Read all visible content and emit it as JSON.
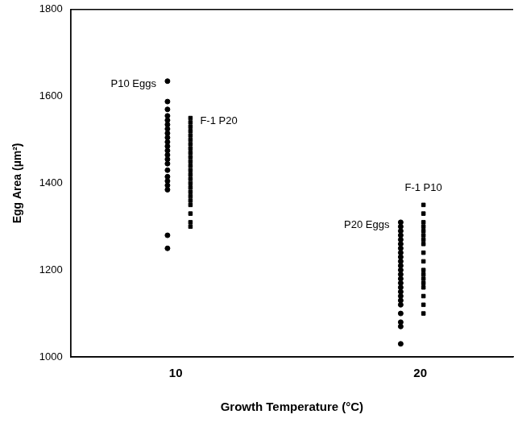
{
  "chart_data": {
    "type": "scatter",
    "x_label": "Growth Temperature (°C)",
    "y_label": "Egg Area (µm²)",
    "xlim": [
      5.7,
      23.8
    ],
    "xticks": [
      10,
      20
    ],
    "ylim": [
      1000,
      1800
    ],
    "yticks": [
      1000,
      1200,
      1400,
      1600,
      1800
    ],
    "grid": false,
    "series": [
      {
        "name": "P10 Eggs",
        "color": "#000000",
        "marker": "circle",
        "x": [
          9.66,
          9.66,
          9.66,
          9.66,
          9.66,
          9.66,
          9.66,
          9.66,
          9.66,
          9.66,
          9.66,
          9.66,
          9.66,
          9.66,
          9.66,
          9.66,
          9.66,
          9.66,
          9.66,
          9.66,
          9.66,
          9.66
        ],
        "values": [
          1635,
          1588,
          1570,
          1555,
          1545,
          1535,
          1525,
          1515,
          1505,
          1495,
          1485,
          1475,
          1465,
          1455,
          1445,
          1430,
          1415,
          1405,
          1395,
          1385,
          1280,
          1250
        ]
      },
      {
        "name": "F-1 P20",
        "color": "#000000",
        "marker": "square",
        "x": [
          10.6,
          10.6,
          10.6,
          10.6,
          10.6,
          10.6,
          10.6,
          10.6,
          10.6,
          10.6,
          10.6,
          10.6,
          10.6,
          10.6,
          10.6,
          10.6,
          10.6,
          10.6,
          10.6,
          10.6,
          10.6,
          10.6,
          10.6,
          10.6
        ],
        "values": [
          1550,
          1540,
          1530,
          1520,
          1510,
          1500,
          1490,
          1480,
          1470,
          1460,
          1450,
          1440,
          1430,
          1420,
          1410,
          1400,
          1390,
          1380,
          1370,
          1360,
          1350,
          1330,
          1310,
          1300
        ]
      },
      {
        "name": "P20 Eggs",
        "color": "#000000",
        "marker": "circle",
        "x": [
          19.2,
          19.2,
          19.2,
          19.2,
          19.2,
          19.2,
          19.2,
          19.2,
          19.2,
          19.2,
          19.2,
          19.2,
          19.2,
          19.2,
          19.2,
          19.2,
          19.2,
          19.2,
          19.2,
          19.2,
          19.2,
          19.2,
          19.2,
          19.2
        ],
        "values": [
          1310,
          1300,
          1290,
          1280,
          1270,
          1260,
          1250,
          1240,
          1230,
          1220,
          1210,
          1200,
          1190,
          1180,
          1170,
          1160,
          1150,
          1140,
          1130,
          1120,
          1100,
          1080,
          1070,
          1030
        ]
      },
      {
        "name": "F-1 P10",
        "color": "#000000",
        "marker": "square",
        "x": [
          20.13,
          20.13,
          20.13,
          20.13,
          20.13,
          20.13,
          20.13,
          20.13,
          20.13,
          20.13,
          20.13,
          20.13,
          20.13,
          20.13,
          20.13,
          20.13,
          20.13,
          20.13
        ],
        "values": [
          1350,
          1330,
          1310,
          1300,
          1290,
          1280,
          1270,
          1260,
          1240,
          1220,
          1200,
          1190,
          1180,
          1170,
          1160,
          1140,
          1120,
          1100
        ]
      }
    ]
  }
}
